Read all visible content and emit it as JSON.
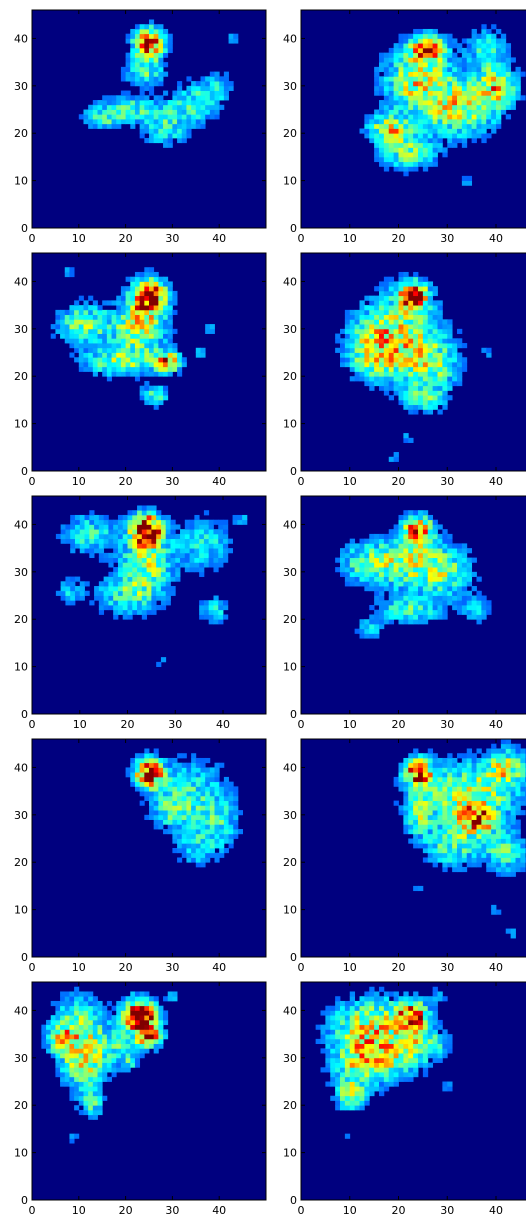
{
  "colors": {
    "background": "#00007f",
    "axis": "#000000"
  },
  "chart_data": [
    {
      "type": "heatmap",
      "xlim": [
        0,
        50
      ],
      "ylim": [
        0,
        46
      ],
      "xticks": [
        "0",
        "10",
        "20",
        "30",
        "40"
      ],
      "yticks": [
        "0",
        "10",
        "20",
        "30",
        "40"
      ],
      "colormap": "jet",
      "grid": false,
      "blobs": [
        {
          "x": 25,
          "y": 39,
          "sx": 2.2,
          "sy": 2.2,
          "v": 0.82
        },
        {
          "x": 24,
          "y": 33,
          "sx": 3,
          "sy": 2,
          "v": 0.3
        },
        {
          "x": 20,
          "y": 25,
          "sx": 4,
          "sy": 2,
          "v": 0.32
        },
        {
          "x": 14,
          "y": 23,
          "sx": 3,
          "sy": 1.5,
          "v": 0.25
        },
        {
          "x": 30,
          "y": 24,
          "sx": 4,
          "sy": 3,
          "v": 0.22
        },
        {
          "x": 36,
          "y": 27,
          "sx": 3,
          "sy": 3,
          "v": 0.25
        },
        {
          "x": 40,
          "y": 30,
          "sx": 2,
          "sy": 2,
          "v": 0.2
        },
        {
          "x": 43,
          "y": 40,
          "sx": 0.7,
          "sy": 0.7,
          "v": 0.2
        },
        {
          "x": 28,
          "y": 20,
          "sx": 3,
          "sy": 2,
          "v": 0.18
        }
      ]
    },
    {
      "type": "heatmap",
      "xlim": [
        0,
        48
      ],
      "ylim": [
        0,
        46
      ],
      "xticks": [
        "0",
        "10",
        "20",
        "30",
        "40"
      ],
      "yticks": [
        "0",
        "10",
        "20",
        "30",
        "40"
      ],
      "colormap": "jet",
      "grid": false,
      "blobs": [
        {
          "x": 26,
          "y": 38,
          "sx": 2.5,
          "sy": 2,
          "v": 0.55
        },
        {
          "x": 24,
          "y": 31,
          "sx": 5,
          "sy": 5,
          "v": 0.45
        },
        {
          "x": 18,
          "y": 21,
          "sx": 3,
          "sy": 2,
          "v": 0.45
        },
        {
          "x": 33,
          "y": 25,
          "sx": 5,
          "sy": 4,
          "v": 0.42
        },
        {
          "x": 40,
          "y": 30,
          "sx": 3,
          "sy": 3,
          "v": 0.45
        },
        {
          "x": 22,
          "y": 16,
          "sx": 4,
          "sy": 2.5,
          "v": 0.35
        },
        {
          "x": 38,
          "y": 38,
          "sx": 3,
          "sy": 3,
          "v": 0.25
        },
        {
          "x": 34,
          "y": 10,
          "sx": 0.7,
          "sy": 0.7,
          "v": 0.2
        }
      ]
    },
    {
      "type": "heatmap",
      "xlim": [
        0,
        50
      ],
      "ylim": [
        0,
        46
      ],
      "xticks": [
        "0",
        "10",
        "20",
        "30",
        "40"
      ],
      "yticks": [
        "0",
        "10",
        "20",
        "30",
        "40"
      ],
      "colormap": "jet",
      "grid": false,
      "blobs": [
        {
          "x": 25,
          "y": 37,
          "sx": 2.5,
          "sy": 2.5,
          "v": 0.85
        },
        {
          "x": 23,
          "y": 30,
          "sx": 4,
          "sy": 4,
          "v": 0.45
        },
        {
          "x": 11,
          "y": 31,
          "sx": 4,
          "sy": 3,
          "v": 0.38
        },
        {
          "x": 29,
          "y": 23,
          "sx": 2,
          "sy": 1.5,
          "v": 0.6
        },
        {
          "x": 18,
          "y": 23,
          "sx": 5,
          "sy": 2,
          "v": 0.35
        },
        {
          "x": 26,
          "y": 16,
          "sx": 2,
          "sy": 1.5,
          "v": 0.35
        },
        {
          "x": 8,
          "y": 42,
          "sx": 0.7,
          "sy": 0.7,
          "v": 0.2
        },
        {
          "x": 36,
          "y": 25,
          "sx": 0.7,
          "sy": 0.7,
          "v": 0.25
        },
        {
          "x": 38,
          "y": 30,
          "sx": 0.7,
          "sy": 0.7,
          "v": 0.2
        }
      ]
    },
    {
      "type": "heatmap",
      "xlim": [
        0,
        48
      ],
      "ylim": [
        0,
        46
      ],
      "xticks": [
        "0",
        "10",
        "20",
        "30",
        "40"
      ],
      "yticks": [
        "0",
        "10",
        "20",
        "30",
        "40"
      ],
      "colormap": "jet",
      "grid": false,
      "blobs": [
        {
          "x": 23,
          "y": 37,
          "sx": 2,
          "sy": 2,
          "v": 0.75
        },
        {
          "x": 20,
          "y": 29,
          "sx": 6,
          "sy": 6,
          "v": 0.42
        },
        {
          "x": 15,
          "y": 25,
          "sx": 4,
          "sy": 4,
          "v": 0.3
        },
        {
          "x": 27,
          "y": 22,
          "sx": 4,
          "sy": 4,
          "v": 0.3
        },
        {
          "x": 25,
          "y": 15,
          "sx": 3,
          "sy": 2,
          "v": 0.25
        },
        {
          "x": 19,
          "y": 3,
          "sx": 0.7,
          "sy": 0.7,
          "v": 0.2
        },
        {
          "x": 22,
          "y": 7,
          "sx": 0.7,
          "sy": 0.7,
          "v": 0.2
        },
        {
          "x": 38,
          "y": 25,
          "sx": 0.7,
          "sy": 0.7,
          "v": 0.2
        }
      ]
    },
    {
      "type": "heatmap",
      "xlim": [
        0,
        49
      ],
      "ylim": [
        0,
        46
      ],
      "xticks": [
        "0",
        "10",
        "20",
        "30",
        "40"
      ],
      "yticks": [
        "0",
        "10",
        "20",
        "30",
        "40"
      ],
      "colormap": "jet",
      "grid": false,
      "blobs": [
        {
          "x": 24,
          "y": 39,
          "sx": 2.3,
          "sy": 2.3,
          "v": 0.9
        },
        {
          "x": 24,
          "y": 32,
          "sx": 4,
          "sy": 4,
          "v": 0.38
        },
        {
          "x": 12,
          "y": 38,
          "sx": 4,
          "sy": 3,
          "v": 0.28
        },
        {
          "x": 36,
          "y": 36,
          "sx": 4,
          "sy": 4,
          "v": 0.25
        },
        {
          "x": 20,
          "y": 25,
          "sx": 5,
          "sy": 3,
          "v": 0.28
        },
        {
          "x": 8,
          "y": 26,
          "sx": 2,
          "sy": 2,
          "v": 0.2
        },
        {
          "x": 38,
          "y": 22,
          "sx": 2,
          "sy": 2,
          "v": 0.25
        },
        {
          "x": 27,
          "y": 11,
          "sx": 0.7,
          "sy": 0.7,
          "v": 0.2
        },
        {
          "x": 44,
          "y": 41,
          "sx": 1,
          "sy": 1,
          "v": 0.2
        }
      ]
    },
    {
      "type": "heatmap",
      "xlim": [
        0,
        48
      ],
      "ylim": [
        0,
        46
      ],
      "xticks": [
        "0",
        "10",
        "20",
        "30",
        "40"
      ],
      "yticks": [
        "0",
        "10",
        "20",
        "30",
        "40"
      ],
      "colormap": "jet",
      "grid": false,
      "blobs": [
        {
          "x": 24,
          "y": 39,
          "sx": 2,
          "sy": 2,
          "v": 0.7
        },
        {
          "x": 22,
          "y": 32,
          "sx": 5,
          "sy": 4,
          "v": 0.38
        },
        {
          "x": 13,
          "y": 32,
          "sx": 4,
          "sy": 3,
          "v": 0.28
        },
        {
          "x": 30,
          "y": 30,
          "sx": 4,
          "sy": 4,
          "v": 0.28
        },
        {
          "x": 22,
          "y": 22,
          "sx": 5,
          "sy": 2,
          "v": 0.28
        },
        {
          "x": 14,
          "y": 18,
          "sx": 2,
          "sy": 1.5,
          "v": 0.2
        },
        {
          "x": 36,
          "y": 22,
          "sx": 2,
          "sy": 2,
          "v": 0.18
        }
      ]
    },
    {
      "type": "heatmap",
      "xlim": [
        0,
        50
      ],
      "ylim": [
        0,
        46
      ],
      "xticks": [
        "0",
        "10",
        "20",
        "30",
        "40"
      ],
      "yticks": [
        "0",
        "10",
        "20",
        "30",
        "40"
      ],
      "colormap": "jet",
      "grid": false,
      "blobs": [
        {
          "x": 25,
          "y": 39,
          "sx": 2,
          "sy": 2,
          "v": 0.82
        },
        {
          "x": 34,
          "y": 35,
          "sx": 6,
          "sy": 5,
          "v": 0.25
        },
        {
          "x": 40,
          "y": 28,
          "sx": 3,
          "sy": 4,
          "v": 0.22
        },
        {
          "x": 35,
          "y": 23,
          "sx": 3,
          "sy": 3,
          "v": 0.2
        },
        {
          "x": 30,
          "y": 31,
          "sx": 3,
          "sy": 3,
          "v": 0.2
        }
      ]
    },
    {
      "type": "heatmap",
      "xlim": [
        0,
        48
      ],
      "ylim": [
        0,
        46
      ],
      "xticks": [
        "0",
        "10",
        "20",
        "30",
        "40"
      ],
      "yticks": [
        "0",
        "10",
        "20",
        "30",
        "40"
      ],
      "colormap": "jet",
      "grid": false,
      "blobs": [
        {
          "x": 24,
          "y": 39,
          "sx": 2,
          "sy": 2,
          "v": 0.72
        },
        {
          "x": 34,
          "y": 34,
          "sx": 7,
          "sy": 5,
          "v": 0.42
        },
        {
          "x": 36,
          "y": 29,
          "sx": 2.5,
          "sy": 2,
          "v": 0.55
        },
        {
          "x": 42,
          "y": 40,
          "sx": 3,
          "sy": 3,
          "v": 0.35
        },
        {
          "x": 31,
          "y": 23,
          "sx": 4,
          "sy": 3,
          "v": 0.3
        },
        {
          "x": 42,
          "y": 22,
          "sx": 3,
          "sy": 3,
          "v": 0.3
        },
        {
          "x": 24,
          "y": 30,
          "sx": 2,
          "sy": 3,
          "v": 0.28
        },
        {
          "x": 24,
          "y": 14,
          "sx": 0.7,
          "sy": 0.7,
          "v": 0.2
        },
        {
          "x": 40,
          "y": 10,
          "sx": 0.7,
          "sy": 0.7,
          "v": 0.2
        },
        {
          "x": 43,
          "y": 5,
          "sx": 0.7,
          "sy": 0.7,
          "v": 0.2
        }
      ]
    },
    {
      "type": "heatmap",
      "xlim": [
        0,
        50
      ],
      "ylim": [
        0,
        46
      ],
      "xticks": [
        "0",
        "10",
        "20",
        "30",
        "40"
      ],
      "yticks": [
        "0",
        "10",
        "20",
        "30",
        "40"
      ],
      "colormap": "jet",
      "grid": false,
      "blobs": [
        {
          "x": 23,
          "y": 39,
          "sx": 2.5,
          "sy": 2.5,
          "v": 0.82
        },
        {
          "x": 25,
          "y": 35,
          "sx": 2,
          "sy": 2,
          "v": 0.6
        },
        {
          "x": 10,
          "y": 36,
          "sx": 4,
          "sy": 5,
          "v": 0.38
        },
        {
          "x": 11,
          "y": 28,
          "sx": 3,
          "sy": 4,
          "v": 0.35
        },
        {
          "x": 6,
          "y": 34,
          "sx": 2,
          "sy": 2,
          "v": 0.3
        },
        {
          "x": 13,
          "y": 20,
          "sx": 2,
          "sy": 2,
          "v": 0.25
        },
        {
          "x": 18,
          "y": 32,
          "sx": 3,
          "sy": 3,
          "v": 0.25
        },
        {
          "x": 30,
          "y": 43,
          "sx": 1,
          "sy": 1,
          "v": 0.2
        },
        {
          "x": 9,
          "y": 13,
          "sx": 0.7,
          "sy": 0.7,
          "v": 0.2
        },
        {
          "x": 21,
          "y": 29,
          "sx": 1,
          "sy": 1,
          "v": 0.2
        }
      ]
    },
    {
      "type": "heatmap",
      "xlim": [
        0,
        48
      ],
      "ylim": [
        0,
        46
      ],
      "xticks": [
        "0",
        "10",
        "20",
        "30",
        "40"
      ],
      "yticks": [
        "0",
        "10",
        "20",
        "30",
        "40"
      ],
      "colormap": "jet",
      "grid": false,
      "blobs": [
        {
          "x": 23,
          "y": 39,
          "sx": 2,
          "sy": 2,
          "v": 0.72
        },
        {
          "x": 15,
          "y": 37,
          "sx": 6,
          "sy": 4,
          "v": 0.45
        },
        {
          "x": 12,
          "y": 29,
          "sx": 4,
          "sy": 4,
          "v": 0.42
        },
        {
          "x": 10,
          "y": 22,
          "sx": 2,
          "sy": 2,
          "v": 0.38
        },
        {
          "x": 20,
          "y": 30,
          "sx": 4,
          "sy": 3,
          "v": 0.3
        },
        {
          "x": 26,
          "y": 33,
          "sx": 3,
          "sy": 2,
          "v": 0.3
        },
        {
          "x": 28,
          "y": 43,
          "sx": 1,
          "sy": 1,
          "v": 0.2
        },
        {
          "x": 9,
          "y": 13,
          "sx": 0.7,
          "sy": 0.7,
          "v": 0.2
        },
        {
          "x": 30,
          "y": 24,
          "sx": 1,
          "sy": 1,
          "v": 0.2
        }
      ]
    }
  ]
}
